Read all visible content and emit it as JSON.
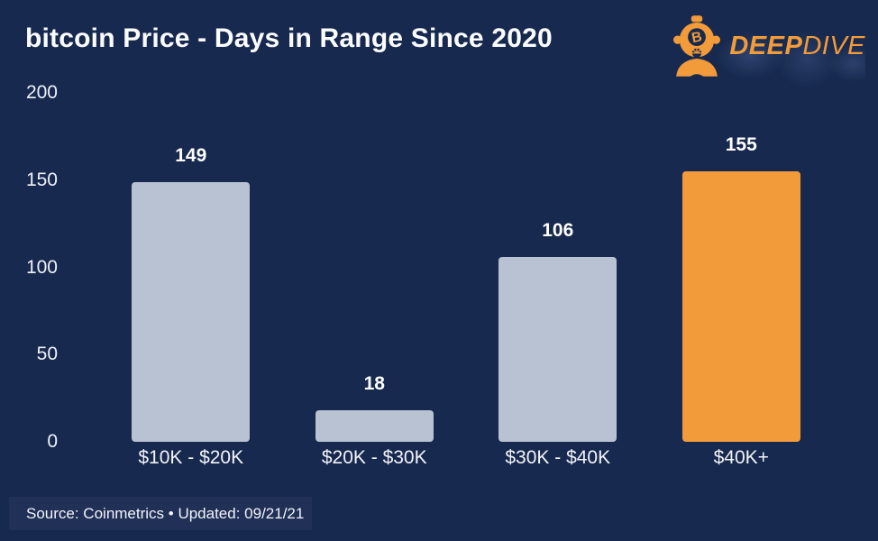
{
  "header": {
    "title": "bitcoin Price - Days in Range Since 2020",
    "logo": {
      "brand_bold": "DEEP",
      "brand_light": "DIVE",
      "icon": "diving-helmet-bitcoin-icon",
      "icon_letter": "B"
    }
  },
  "chart_data": {
    "type": "bar",
    "title": "bitcoin Price - Days in Range Since 2020",
    "categories": [
      "$10K - $20K",
      "$20K - $30K",
      "$30K - $40K",
      "$40K+"
    ],
    "values": [
      149,
      18,
      106,
      155
    ],
    "bar_colors": [
      "#b9c2d3",
      "#b9c2d3",
      "#b9c2d3",
      "#f29b3a"
    ],
    "xlabel": "",
    "ylabel": "",
    "ylim": [
      0,
      200
    ],
    "yticks": [
      0,
      50,
      100,
      150,
      200
    ],
    "grid": false,
    "legend": false,
    "value_labels": true
  },
  "footer": {
    "source_text": "Source: Coinmetrics • Updated: 09/21/21"
  },
  "colors": {
    "background": "#17294e",
    "bar_default": "#b9c2d3",
    "bar_highlight": "#f29b3a",
    "accent_orange": "#f29b3a",
    "text": "#ffffff",
    "footer_bg": "#213057"
  }
}
